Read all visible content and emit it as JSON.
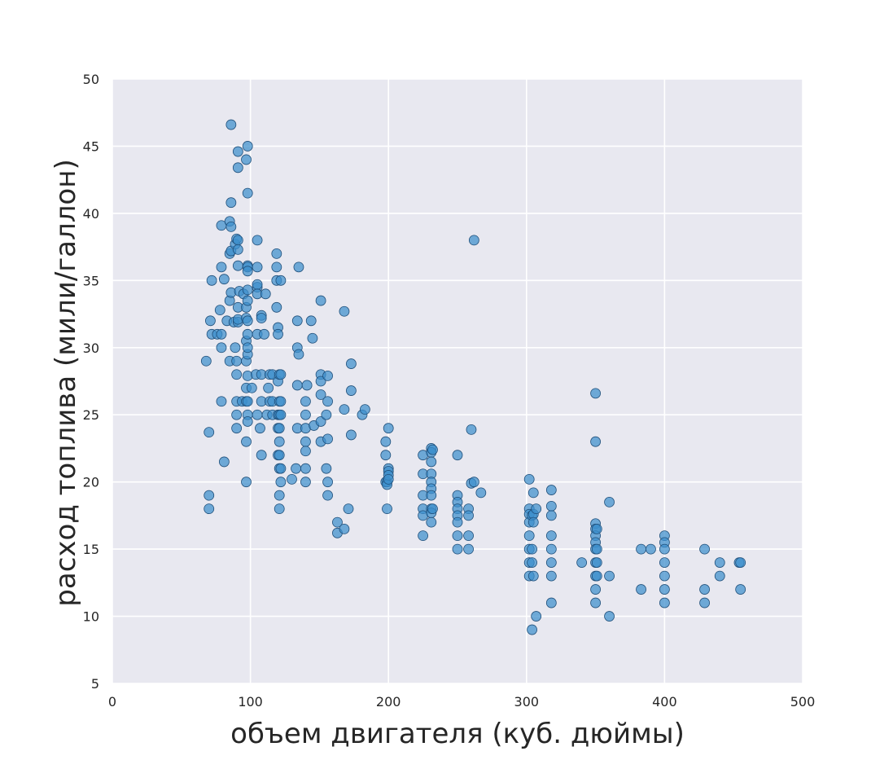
{
  "chart_data": {
    "type": "scatter",
    "xlabel": "объем двигателя (куб. дюймы)",
    "ylabel": "расход топлива (мили/галлон)",
    "xlim": [
      0,
      500
    ],
    "ylim": [
      5,
      50
    ],
    "xticks": [
      "0",
      "100",
      "200",
      "300",
      "400",
      "500"
    ],
    "yticks": [
      "5",
      "10",
      "15",
      "20",
      "25",
      "30",
      "35",
      "40",
      "45",
      "50"
    ],
    "grid": true,
    "background_color": "#e8e8f0",
    "marker_color": "#3d8fcc",
    "marker_edge_color": "#1f4e79",
    "points": [
      [
        68,
        29
      ],
      [
        70,
        23.7
      ],
      [
        70,
        19
      ],
      [
        70,
        18
      ],
      [
        71,
        32
      ],
      [
        72,
        35
      ],
      [
        72,
        31
      ],
      [
        76,
        31
      ],
      [
        78,
        32.8
      ],
      [
        79,
        31
      ],
      [
        79,
        26
      ],
      [
        79,
        36
      ],
      [
        79,
        39.1
      ],
      [
        79,
        30
      ],
      [
        81,
        35.1
      ],
      [
        81,
        21.5
      ],
      [
        83,
        32
      ],
      [
        85,
        39.4
      ],
      [
        85,
        37
      ],
      [
        85,
        33.5
      ],
      [
        85,
        29
      ],
      [
        86,
        39
      ],
      [
        86,
        40.8
      ],
      [
        86,
        46.6
      ],
      [
        86,
        37.2
      ],
      [
        86,
        34.1
      ],
      [
        88,
        31.9
      ],
      [
        89,
        37.7
      ],
      [
        89,
        30
      ],
      [
        90,
        38.1
      ],
      [
        90,
        29
      ],
      [
        90,
        26
      ],
      [
        90,
        25
      ],
      [
        90,
        24
      ],
      [
        90,
        28
      ],
      [
        91,
        44.6
      ],
      [
        91,
        43.4
      ],
      [
        91,
        36.1
      ],
      [
        91,
        31.9
      ],
      [
        91,
        38
      ],
      [
        91,
        37.3
      ],
      [
        91,
        33
      ],
      [
        91,
        32.1
      ],
      [
        92,
        34.2
      ],
      [
        94,
        26
      ],
      [
        95,
        34
      ],
      [
        97,
        44
      ],
      [
        97,
        32.2
      ],
      [
        97,
        30.5
      ],
      [
        97,
        29
      ],
      [
        97,
        27
      ],
      [
        97,
        26
      ],
      [
        97,
        33
      ],
      [
        97,
        20
      ],
      [
        97,
        23
      ],
      [
        98,
        45
      ],
      [
        98,
        41.5
      ],
      [
        98,
        32
      ],
      [
        98,
        29.5
      ],
      [
        98,
        27.9
      ],
      [
        98,
        26
      ],
      [
        98,
        25
      ],
      [
        98,
        24.5
      ],
      [
        98,
        36.1
      ],
      [
        98,
        34.3
      ],
      [
        98,
        31
      ],
      [
        98,
        36
      ],
      [
        98,
        35.7
      ],
      [
        98,
        33.5
      ],
      [
        98,
        30
      ],
      [
        101,
        27
      ],
      [
        104,
        28
      ],
      [
        105,
        38
      ],
      [
        105,
        34.5
      ],
      [
        105,
        34.7
      ],
      [
        105,
        34
      ],
      [
        105,
        31
      ],
      [
        105,
        36
      ],
      [
        105,
        25
      ],
      [
        107,
        24
      ],
      [
        108,
        32.4
      ],
      [
        108,
        32.2
      ],
      [
        108,
        28
      ],
      [
        108,
        26
      ],
      [
        108,
        22
      ],
      [
        110,
        31
      ],
      [
        111,
        34
      ],
      [
        112,
        25
      ],
      [
        113,
        27
      ],
      [
        114,
        28
      ],
      [
        114,
        26
      ],
      [
        116,
        26
      ],
      [
        116,
        25
      ],
      [
        116,
        28
      ],
      [
        119,
        33
      ],
      [
        119,
        35
      ],
      [
        119,
        36
      ],
      [
        119,
        37
      ],
      [
        120,
        31.5
      ],
      [
        120,
        31
      ],
      [
        120,
        27.5
      ],
      [
        120,
        25
      ],
      [
        120,
        24
      ],
      [
        120,
        22
      ],
      [
        121,
        28
      ],
      [
        121,
        26
      ],
      [
        121,
        25
      ],
      [
        121,
        24
      ],
      [
        121,
        23
      ],
      [
        121,
        22
      ],
      [
        121,
        21
      ],
      [
        121,
        19
      ],
      [
        121,
        18
      ],
      [
        122,
        35
      ],
      [
        122,
        28
      ],
      [
        122,
        26
      ],
      [
        122,
        25
      ],
      [
        122,
        21
      ],
      [
        122,
        20
      ],
      [
        130,
        20.2
      ],
      [
        133,
        21
      ],
      [
        134,
        32
      ],
      [
        134,
        30
      ],
      [
        134,
        27.2
      ],
      [
        134,
        24
      ],
      [
        135,
        36
      ],
      [
        135,
        29.5
      ],
      [
        140,
        26
      ],
      [
        140,
        25
      ],
      [
        140,
        24
      ],
      [
        140,
        23
      ],
      [
        140,
        22.3
      ],
      [
        140,
        21
      ],
      [
        140,
        20
      ],
      [
        141,
        27.2
      ],
      [
        144,
        32
      ],
      [
        145,
        30.7
      ],
      [
        146,
        24.2
      ],
      [
        151,
        33.5
      ],
      [
        151,
        28
      ],
      [
        151,
        27.5
      ],
      [
        151,
        26.5
      ],
      [
        151,
        24.5
      ],
      [
        151,
        23
      ],
      [
        155,
        25
      ],
      [
        155,
        21
      ],
      [
        156,
        27.9
      ],
      [
        156,
        26
      ],
      [
        156,
        23.2
      ],
      [
        156,
        20
      ],
      [
        156,
        19
      ],
      [
        163,
        17
      ],
      [
        163,
        16.2
      ],
      [
        168,
        25.4
      ],
      [
        168,
        32.7
      ],
      [
        168,
        16.5
      ],
      [
        171,
        18
      ],
      [
        173,
        28.8
      ],
      [
        173,
        26.8
      ],
      [
        173,
        23.5
      ],
      [
        181,
        25
      ],
      [
        183,
        25.4
      ],
      [
        198,
        23
      ],
      [
        198,
        22
      ],
      [
        198,
        20
      ],
      [
        199,
        20
      ],
      [
        199,
        19.8
      ],
      [
        199,
        18
      ],
      [
        200,
        24
      ],
      [
        200,
        21
      ],
      [
        200,
        20.8
      ],
      [
        200,
        20.5
      ],
      [
        200,
        20.2
      ],
      [
        225,
        22
      ],
      [
        225,
        20.6
      ],
      [
        225,
        19
      ],
      [
        225,
        18
      ],
      [
        225,
        17.5
      ],
      [
        225,
        16
      ],
      [
        231,
        22.5
      ],
      [
        231,
        22.2
      ],
      [
        231,
        21.5
      ],
      [
        231,
        20.6
      ],
      [
        231,
        20
      ],
      [
        231,
        19.5
      ],
      [
        231,
        19
      ],
      [
        231,
        18
      ],
      [
        231,
        17.7
      ],
      [
        231,
        17
      ],
      [
        232,
        22.4
      ],
      [
        232,
        18
      ],
      [
        250,
        22
      ],
      [
        250,
        19
      ],
      [
        250,
        18.5
      ],
      [
        250,
        18
      ],
      [
        250,
        17.5
      ],
      [
        250,
        17
      ],
      [
        250,
        16
      ],
      [
        250,
        15
      ],
      [
        258,
        18
      ],
      [
        258,
        17.5
      ],
      [
        258,
        16
      ],
      [
        258,
        15
      ],
      [
        260,
        23.9
      ],
      [
        260,
        19.9
      ],
      [
        262,
        38
      ],
      [
        262,
        20
      ],
      [
        267,
        19.2
      ],
      [
        302,
        20.2
      ],
      [
        302,
        18
      ],
      [
        302,
        17.6
      ],
      [
        302,
        17
      ],
      [
        302,
        16
      ],
      [
        302,
        15
      ],
      [
        302,
        14
      ],
      [
        302,
        13
      ],
      [
        304,
        17.5
      ],
      [
        304,
        15
      ],
      [
        304,
        14
      ],
      [
        304,
        9
      ],
      [
        305,
        19.2
      ],
      [
        305,
        17.6
      ],
      [
        305,
        17
      ],
      [
        305,
        13
      ],
      [
        307,
        18
      ],
      [
        307,
        10
      ],
      [
        318,
        19.4
      ],
      [
        318,
        18.2
      ],
      [
        318,
        17.5
      ],
      [
        318,
        16
      ],
      [
        318,
        15
      ],
      [
        318,
        14
      ],
      [
        318,
        13
      ],
      [
        318,
        11
      ],
      [
        340,
        14
      ],
      [
        350,
        26.6
      ],
      [
        350,
        23
      ],
      [
        350,
        16.9
      ],
      [
        350,
        16.5
      ],
      [
        350,
        16
      ],
      [
        350,
        15.5
      ],
      [
        350,
        15
      ],
      [
        350,
        14
      ],
      [
        350,
        13
      ],
      [
        350,
        12
      ],
      [
        350,
        11
      ],
      [
        351,
        16.5
      ],
      [
        351,
        15
      ],
      [
        351,
        14
      ],
      [
        351,
        13
      ],
      [
        360,
        18.5
      ],
      [
        360,
        13
      ],
      [
        360,
        10
      ],
      [
        383,
        15
      ],
      [
        383,
        12
      ],
      [
        390,
        15
      ],
      [
        400,
        16
      ],
      [
        400,
        15.5
      ],
      [
        400,
        15
      ],
      [
        400,
        14
      ],
      [
        400,
        13
      ],
      [
        400,
        12
      ],
      [
        400,
        11
      ],
      [
        429,
        15
      ],
      [
        429,
        12
      ],
      [
        429,
        11
      ],
      [
        440,
        14
      ],
      [
        440,
        13
      ],
      [
        454,
        14
      ],
      [
        455,
        14
      ],
      [
        455,
        12
      ]
    ]
  }
}
